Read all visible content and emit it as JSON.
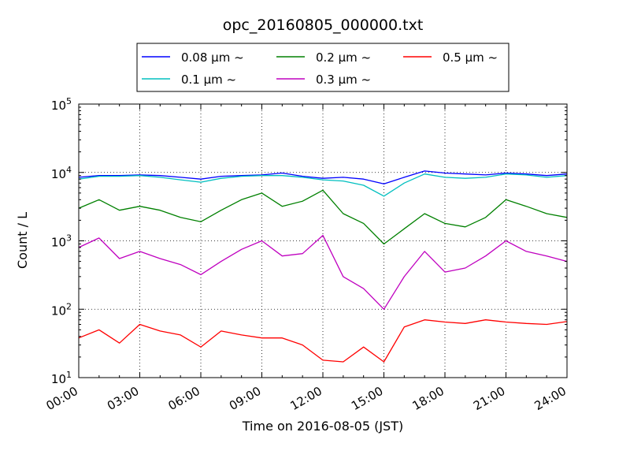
{
  "chart_data": {
    "type": "line",
    "title": "opc_20160805_000000.txt",
    "xlabel": "Time on 2016-08-05 (JST)",
    "ylabel": "Count / L",
    "xlim": [
      "2016-08-05 00:00",
      "2016-08-06 00:00"
    ],
    "xticks": [
      "00:00",
      "03:00",
      "06:00",
      "09:00",
      "12:00",
      "15:00",
      "18:00",
      "21:00",
      "24:00"
    ],
    "yscale": "log",
    "ylim": [
      10,
      100000
    ],
    "yticks": [
      {
        "base": "10",
        "exp": "1"
      },
      {
        "base": "10",
        "exp": "2"
      },
      {
        "base": "10",
        "exp": "3"
      },
      {
        "base": "10",
        "exp": "4"
      },
      {
        "base": "10",
        "exp": "5"
      }
    ],
    "grid": true,
    "legend_position": "top-center",
    "series": [
      {
        "name": "0.08 μm ~",
        "color": "#0000ff",
        "x": [
          "00:00",
          "01:00",
          "02:00",
          "03:00",
          "04:00",
          "05:00",
          "06:00",
          "07:00",
          "08:00",
          "09:00",
          "10:00",
          "11:00",
          "12:00",
          "13:00",
          "14:00",
          "15:00",
          "16:00",
          "17:00",
          "18:00",
          "19:00",
          "20:00",
          "21:00",
          "22:00",
          "23:00",
          "24:00"
        ],
        "y": [
          8500,
          9000,
          9000,
          9200,
          9000,
          8500,
          8000,
          8800,
          9000,
          9200,
          9800,
          8800,
          8200,
          8500,
          8000,
          6800,
          8500,
          10500,
          9800,
          9500,
          9200,
          9800,
          9500,
          9000,
          9500
        ]
      },
      {
        "name": "0.1 μm ~",
        "color": "#00bfbf",
        "x": [
          "00:00",
          "01:00",
          "02:00",
          "03:00",
          "04:00",
          "05:00",
          "06:00",
          "07:00",
          "08:00",
          "09:00",
          "10:00",
          "11:00",
          "12:00",
          "13:00",
          "14:00",
          "15:00",
          "16:00",
          "17:00",
          "18:00",
          "19:00",
          "20:00",
          "21:00",
          "22:00",
          "23:00",
          "24:00"
        ],
        "y": [
          8000,
          8800,
          8800,
          9000,
          8500,
          7800,
          7200,
          8200,
          8800,
          9000,
          9000,
          8500,
          7800,
          7500,
          6500,
          4500,
          7000,
          9500,
          8500,
          8200,
          8500,
          9500,
          9200,
          8500,
          9000
        ]
      },
      {
        "name": "0.2 μm ~",
        "color": "#008000",
        "x": [
          "00:00",
          "01:00",
          "02:00",
          "03:00",
          "04:00",
          "05:00",
          "06:00",
          "07:00",
          "08:00",
          "09:00",
          "10:00",
          "11:00",
          "12:00",
          "13:00",
          "14:00",
          "15:00",
          "16:00",
          "17:00",
          "18:00",
          "19:00",
          "20:00",
          "21:00",
          "22:00",
          "23:00",
          "24:00"
        ],
        "y": [
          3000,
          4000,
          2800,
          3200,
          2800,
          2200,
          1900,
          2800,
          4000,
          5000,
          3200,
          3800,
          5500,
          2500,
          1800,
          900,
          1500,
          2500,
          1800,
          1600,
          2200,
          4000,
          3200,
          2500,
          2200
        ]
      },
      {
        "name": "0.3 μm ~",
        "color": "#bf00bf",
        "x": [
          "00:00",
          "01:00",
          "02:00",
          "03:00",
          "04:00",
          "05:00",
          "06:00",
          "07:00",
          "08:00",
          "09:00",
          "10:00",
          "11:00",
          "12:00",
          "13:00",
          "14:00",
          "15:00",
          "16:00",
          "17:00",
          "18:00",
          "19:00",
          "20:00",
          "21:00",
          "22:00",
          "23:00",
          "24:00"
        ],
        "y": [
          800,
          1100,
          550,
          700,
          550,
          450,
          320,
          500,
          750,
          1000,
          600,
          650,
          1200,
          300,
          200,
          100,
          300,
          700,
          350,
          400,
          600,
          1000,
          700,
          600,
          500
        ]
      },
      {
        "name": "0.5 μm ~",
        "color": "#ff0000",
        "x": [
          "00:00",
          "01:00",
          "02:00",
          "03:00",
          "04:00",
          "05:00",
          "06:00",
          "07:00",
          "08:00",
          "09:00",
          "10:00",
          "11:00",
          "12:00",
          "13:00",
          "14:00",
          "15:00",
          "16:00",
          "17:00",
          "18:00",
          "19:00",
          "20:00",
          "21:00",
          "22:00",
          "23:00",
          "24:00"
        ],
        "y": [
          38,
          50,
          32,
          60,
          48,
          42,
          28,
          48,
          42,
          38,
          38,
          30,
          18,
          17,
          28,
          17,
          55,
          70,
          65,
          62,
          70,
          65,
          62,
          60,
          66
        ]
      }
    ]
  }
}
